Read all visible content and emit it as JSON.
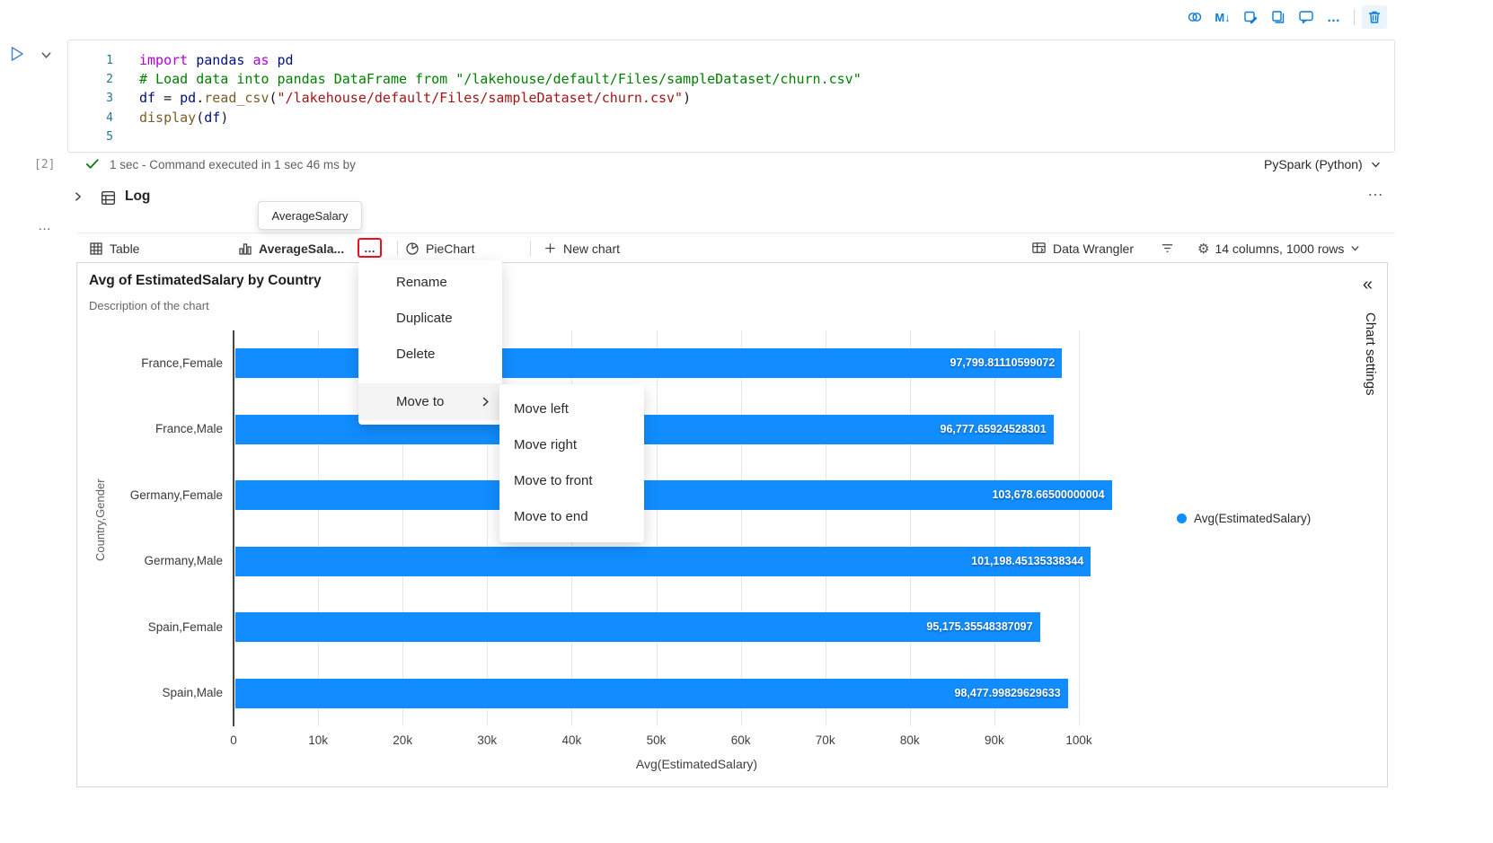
{
  "colors": {
    "accent": "#0A7CD6",
    "highlight_red": "#E81123",
    "success_green": "#107C10",
    "bar_blue": "#118DFF"
  },
  "icons": {
    "gear": "⚙"
  },
  "header_toolbar": {
    "markdown_label": "M↓",
    "more_label": "…"
  },
  "cell": {
    "execution_count": "[2]",
    "status_text": "1 sec - Command executed in 1 sec 46 ms by",
    "kernel_label": "PySpark (Python)",
    "code_lines": [
      {
        "num": "1",
        "tokens": [
          {
            "t": "import",
            "c": "kw"
          },
          {
            "t": " ",
            "c": "plain"
          },
          {
            "t": "pandas",
            "c": "name"
          },
          {
            "t": " ",
            "c": "plain"
          },
          {
            "t": "as",
            "c": "kw"
          },
          {
            "t": " ",
            "c": "plain"
          },
          {
            "t": "pd",
            "c": "name"
          }
        ]
      },
      {
        "num": "2",
        "tokens": [
          {
            "t": "# Load data into pandas DataFrame from \"/lakehouse/default/Files/sampleDataset/churn.csv\"",
            "c": "comment"
          }
        ]
      },
      {
        "num": "3",
        "tokens": [
          {
            "t": "df",
            "c": "name"
          },
          {
            "t": " ",
            "c": "plain"
          },
          {
            "t": "=",
            "c": "plain"
          },
          {
            "t": " ",
            "c": "plain"
          },
          {
            "t": "pd",
            "c": "name"
          },
          {
            "t": ".",
            "c": "plain"
          },
          {
            "t": "read_csv",
            "c": "func"
          },
          {
            "t": "(",
            "c": "plain"
          },
          {
            "t": "\"/lakehouse/default/Files/sampleDataset/churn.csv\"",
            "c": "str"
          },
          {
            "t": ")",
            "c": "plain"
          }
        ]
      },
      {
        "num": "4",
        "tokens": [
          {
            "t": "display",
            "c": "func"
          },
          {
            "t": "(",
            "c": "plain"
          },
          {
            "t": "df",
            "c": "name"
          },
          {
            "t": ")",
            "c": "plain"
          }
        ]
      },
      {
        "num": "5",
        "tokens": []
      }
    ]
  },
  "log": {
    "label": "Log",
    "more_label": "…"
  },
  "output_more_label": "…",
  "tooltip": {
    "text": "AverageSalary"
  },
  "tab_bar": {
    "table": "Table",
    "chart": "AverageSala...",
    "chart_more": "…",
    "pie": "PieChart",
    "new_chart": "New chart",
    "data_wrangler": "Data Wrangler",
    "dimensions": "14 columns, 1000 rows"
  },
  "context_menu": {
    "items": [
      "Rename",
      "Duplicate",
      "Delete"
    ],
    "move_to": "Move to",
    "submenu": [
      "Move left",
      "Move right",
      "Move to front",
      "Move to end"
    ]
  },
  "chart_settings": {
    "collapse": "«",
    "label": "Chart settings"
  },
  "chart_data": {
    "type": "bar",
    "orientation": "horizontal",
    "title": "Avg of EstimatedSalary by Country",
    "subtitle": "Description of the chart",
    "categories": [
      "France,Female",
      "France,Male",
      "Germany,Female",
      "Germany,Male",
      "Spain,Female",
      "Spain,Male"
    ],
    "values": [
      97799.81110599072,
      96777.65924528301,
      103678.66500000004,
      101198.45135338344,
      95175.35548387097,
      98477.99829629633
    ],
    "value_labels": [
      "97,799.81110599072",
      "96,777.65924528301",
      "103,678.66500000004",
      "101,198.45135338344",
      "95,175.35548387097",
      "98,477.99829629633"
    ],
    "xlabel": "Avg(EstimatedSalary)",
    "ylabel": "Country,Gender",
    "xticks": [
      "0",
      "10k",
      "20k",
      "30k",
      "40k",
      "50k",
      "60k",
      "70k",
      "80k",
      "90k",
      "100k"
    ],
    "xlim": [
      0,
      100000
    ],
    "legend": "Avg(EstimatedSalary)",
    "bar_color": "#118DFF",
    "grid": true,
    "legend_position": "right"
  }
}
